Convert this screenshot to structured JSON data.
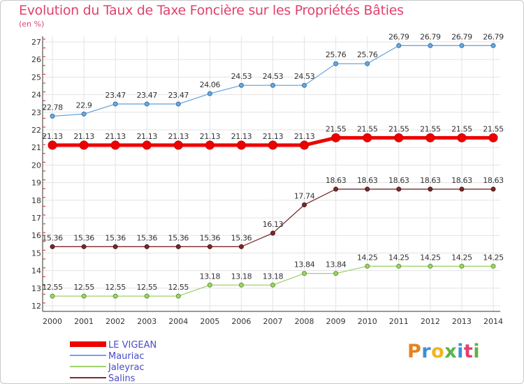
{
  "title": "Evolution du Taux de Taxe Foncière sur les Propriétés Bâties",
  "unit_label": "(en %)",
  "logo": {
    "letters": [
      "P",
      "r",
      "o",
      "x",
      "i",
      "t",
      "i"
    ],
    "colors": [
      "#e8821e",
      "#3a8fd6",
      "#f2b51b",
      "#5bb247",
      "#3a8fd6",
      "#e0416d",
      "#5bb247"
    ]
  },
  "chart_data": {
    "type": "line",
    "title": "Evolution du Taux de Taxe Foncière sur les Propriétés Bâties",
    "ylabel": "(en %)",
    "xlabel": "",
    "ylim": [
      12,
      27
    ],
    "yticks": [
      12,
      13,
      14,
      15,
      16,
      17,
      18,
      19,
      20,
      21,
      22,
      23,
      24,
      25,
      26,
      27
    ],
    "x": [
      2000,
      2001,
      2002,
      2003,
      2004,
      2005,
      2006,
      2007,
      2008,
      2009,
      2010,
      2011,
      2012,
      2013,
      2014
    ],
    "series": [
      {
        "name": "LE VIGEAN",
        "color": "#ee0000",
        "labels": [
          "21.13",
          "21.13",
          "21.13",
          "21.13",
          "21.13",
          "21.13",
          "21.13",
          "21.13",
          "21.13",
          "21.55",
          "21.55",
          "21.55",
          "21.55",
          "21.55",
          "21.55"
        ],
        "values": [
          21.13,
          21.13,
          21.13,
          21.13,
          21.13,
          21.13,
          21.13,
          21.13,
          21.13,
          21.55,
          21.55,
          21.55,
          21.55,
          21.55,
          21.55
        ]
      },
      {
        "name": "Mauriac",
        "color": "#6fa8dc",
        "labels": [
          "22.78",
          "22.9",
          "23.47",
          "23.47",
          "23.47",
          "24.06",
          "24.53",
          "24.53",
          "24.53",
          "25.76",
          "25.76",
          "26.79",
          "26.79",
          "26.79",
          "26.79"
        ],
        "values": [
          22.78,
          22.9,
          23.47,
          23.47,
          23.47,
          24.06,
          24.53,
          24.53,
          24.53,
          25.76,
          25.76,
          26.79,
          26.79,
          26.79,
          26.79
        ]
      },
      {
        "name": "Jaleyrac",
        "color": "#a0d26e",
        "labels": [
          "12.55",
          "12.55",
          "12.55",
          "12.55",
          "12.55",
          "13.18",
          "13.18",
          "13.18",
          "13.84",
          "13.84",
          "14.25",
          "14.25",
          "14.25",
          "14.25",
          "14.25"
        ],
        "values": [
          12.55,
          12.55,
          12.55,
          12.55,
          12.55,
          13.18,
          13.18,
          13.18,
          13.84,
          13.84,
          14.25,
          14.25,
          14.25,
          14.25,
          14.25
        ]
      },
      {
        "name": "Salins",
        "color": "#7a2a2a",
        "labels": [
          "15.36",
          "15.36",
          "15.36",
          "15.36",
          "15.36",
          "15.36",
          "15.36",
          "16.13",
          "17.74",
          "18.63",
          "18.63",
          "18.63",
          "18.63",
          "18.63",
          "18.63"
        ],
        "values": [
          15.36,
          15.36,
          15.36,
          15.36,
          15.36,
          15.36,
          15.36,
          16.13,
          17.74,
          18.63,
          18.63,
          18.63,
          18.63,
          18.63,
          18.63
        ]
      }
    ],
    "grid": true,
    "legend_position": "bottom-left"
  }
}
